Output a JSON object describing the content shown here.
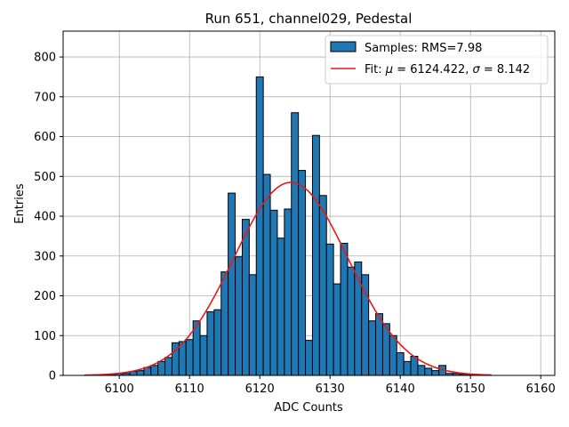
{
  "chart_data": {
    "type": "bar",
    "title": "Run 651, channel029, Pedestal",
    "xlabel": "ADC Counts",
    "ylabel": "Entries",
    "xlim": [
      5092,
      6162
    ],
    "ylim": [
      0,
      865
    ],
    "xticks": [
      6100,
      6110,
      6120,
      6130,
      6140,
      6150,
      6160
    ],
    "yticks": [
      0,
      100,
      200,
      300,
      400,
      500,
      600,
      700,
      800
    ],
    "grid": true,
    "legend_position": "top-right",
    "colors": {
      "bars": "#1f77b4",
      "fit": "#e41a1c"
    },
    "bin_width": 1,
    "bins": [
      {
        "x": 6096,
        "y": 1
      },
      {
        "x": 6097,
        "y": 1
      },
      {
        "x": 6098,
        "y": 2
      },
      {
        "x": 6099,
        "y": 2
      },
      {
        "x": 6100,
        "y": 5
      },
      {
        "x": 6101,
        "y": 5
      },
      {
        "x": 6102,
        "y": 10
      },
      {
        "x": 6103,
        "y": 12
      },
      {
        "x": 6104,
        "y": 20
      },
      {
        "x": 6105,
        "y": 25
      },
      {
        "x": 6106,
        "y": 35
      },
      {
        "x": 6107,
        "y": 45
      },
      {
        "x": 6108,
        "y": 82
      },
      {
        "x": 6109,
        "y": 85
      },
      {
        "x": 6110,
        "y": 90
      },
      {
        "x": 6111,
        "y": 137
      },
      {
        "x": 6112,
        "y": 100
      },
      {
        "x": 6113,
        "y": 160
      },
      {
        "x": 6114,
        "y": 165
      },
      {
        "x": 6115,
        "y": 260
      },
      {
        "x": 6116,
        "y": 458
      },
      {
        "x": 6117,
        "y": 298
      },
      {
        "x": 6118,
        "y": 392
      },
      {
        "x": 6119,
        "y": 253
      },
      {
        "x": 6120,
        "y": 750
      },
      {
        "x": 6121,
        "y": 505
      },
      {
        "x": 6122,
        "y": 415
      },
      {
        "x": 6123,
        "y": 345
      },
      {
        "x": 6124,
        "y": 418
      },
      {
        "x": 6125,
        "y": 660
      },
      {
        "x": 6126,
        "y": 515
      },
      {
        "x": 6127,
        "y": 88
      },
      {
        "x": 6128,
        "y": 603
      },
      {
        "x": 6129,
        "y": 452
      },
      {
        "x": 6130,
        "y": 330
      },
      {
        "x": 6131,
        "y": 230
      },
      {
        "x": 6132,
        "y": 332
      },
      {
        "x": 6133,
        "y": 272
      },
      {
        "x": 6134,
        "y": 285
      },
      {
        "x": 6135,
        "y": 253
      },
      {
        "x": 6136,
        "y": 137
      },
      {
        "x": 6137,
        "y": 155
      },
      {
        "x": 6138,
        "y": 130
      },
      {
        "x": 6139,
        "y": 100
      },
      {
        "x": 6140,
        "y": 57
      },
      {
        "x": 6141,
        "y": 35
      },
      {
        "x": 6142,
        "y": 48
      },
      {
        "x": 6143,
        "y": 25
      },
      {
        "x": 6144,
        "y": 18
      },
      {
        "x": 6145,
        "y": 12
      },
      {
        "x": 6146,
        "y": 25
      },
      {
        "x": 6147,
        "y": 5
      },
      {
        "x": 6148,
        "y": 5
      },
      {
        "x": 6149,
        "y": 3
      },
      {
        "x": 6150,
        "y": 2
      },
      {
        "x": 6151,
        "y": 1
      }
    ],
    "fit": {
      "mu": 6124.422,
      "sigma": 8.142,
      "amplitude": 485,
      "x_range": [
        6095,
        6153
      ]
    },
    "legend": {
      "samples_label": "Samples: RMS=7.98",
      "fit_prefix": "Fit: ",
      "fit_mu_symbol": "μ",
      "fit_mu_text": " = 6124.422, ",
      "fit_sigma_symbol": "σ",
      "fit_sigma_text": " = 8.142"
    }
  }
}
